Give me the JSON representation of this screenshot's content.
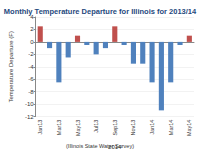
{
  "chart_data": {
    "type": "bar",
    "title": "Monthly Temperature Departure for Illinois for 2013/14",
    "xlabel": "2014",
    "ylabel": "Temperature Departure (F)",
    "annotation": "(Illinois State Water Survey)",
    "categories": [
      "Jan13",
      null,
      "Mar13",
      null,
      "May13",
      null,
      "Jul13",
      null,
      "Sep13",
      null,
      "Nov13",
      null,
      "Jan14",
      null,
      "Mar14",
      null,
      "May14"
    ],
    "values": [
      2.5,
      -1,
      -6.5,
      -2.5,
      1,
      -0.5,
      -2,
      -1,
      2.5,
      -0.5,
      -3.5,
      -3.5,
      -6.5,
      -11,
      -6.5,
      -0.5,
      1
    ],
    "colors": [
      "#c0504d",
      "#4f81bd",
      "#4f81bd",
      "#4f81bd",
      "#c0504d",
      "#4f81bd",
      "#4f81bd",
      "#4f81bd",
      "#c0504d",
      "#4f81bd",
      "#4f81bd",
      "#4f81bd",
      "#4f81bd",
      "#4f81bd",
      "#4f81bd",
      "#4f81bd",
      "#c0504d"
    ],
    "ylim": [
      -12,
      4
    ],
    "yticks": [
      -12,
      -10,
      -8,
      -6,
      -4,
      -2,
      0,
      2,
      4
    ],
    "grid": true
  }
}
